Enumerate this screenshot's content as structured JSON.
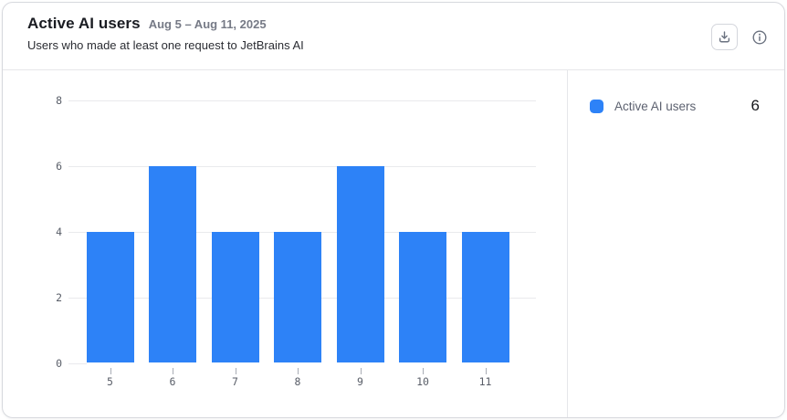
{
  "card": {
    "title": "Active AI users",
    "date_range": "Aug 5 – Aug 11, 2025",
    "subtitle": "Users who made at least one request to JetBrains AI",
    "actions": {
      "download_icon": "download-tray-icon",
      "info_icon": "info-circle-icon"
    }
  },
  "legend": {
    "label": "Active AI users",
    "value": "6",
    "swatch_color": "#2d82f7"
  },
  "chart_data": {
    "type": "bar",
    "title": "Active AI users",
    "categories": [
      "5",
      "6",
      "7",
      "8",
      "9",
      "10",
      "11"
    ],
    "series": [
      {
        "name": "Active AI users",
        "values": [
          4,
          6,
          4,
          4,
          6,
          4,
          4
        ]
      }
    ],
    "xlabel": "",
    "ylabel": "",
    "ylim": [
      0,
      8
    ],
    "yticks": [
      0,
      2,
      4,
      6,
      8
    ],
    "grid": true,
    "bar_color": "#2d82f7",
    "legend_position": "right"
  },
  "colors": {
    "accent_blue": "#2d82f7",
    "card_border": "#d7d9de",
    "divider": "#e6e7ea",
    "gridline": "#e9eaed",
    "axis_text": "#595e68",
    "icon_gray": "#6b7280"
  }
}
